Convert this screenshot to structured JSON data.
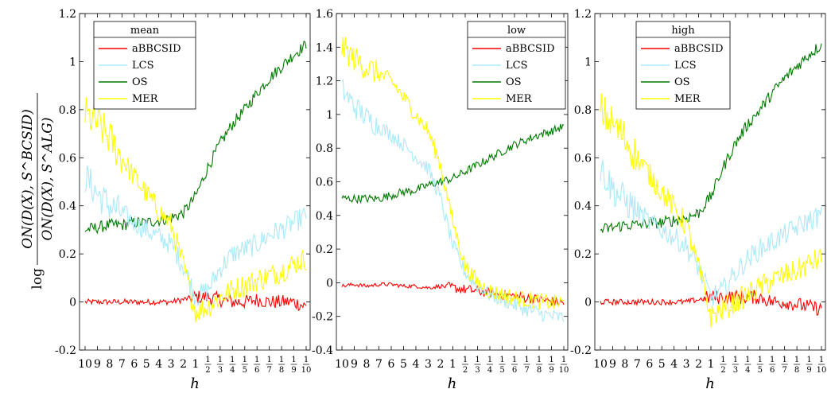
{
  "figure": {
    "ylabel": "log ON(D(X), S^BCSID) / ON(D(X), S^ALG)",
    "xlabel": "h",
    "x_tick_labels": [
      "10",
      "9",
      "8",
      "7",
      "6",
      "5",
      "4",
      "3",
      "2",
      "1",
      "1/2",
      "1/3",
      "1/4",
      "1/5",
      "1/6",
      "1/7",
      "1/8",
      "1/9",
      "1/10"
    ]
  },
  "colors": {
    "aBBCSID": "#ff0000",
    "LCS": "#aaeaf8",
    "OS": "#007a00",
    "MER": "#ffff00"
  },
  "chart_data": [
    {
      "type": "line",
      "title": "mean",
      "legend_title": "mean",
      "legend_position": "top-left",
      "ylim": [
        -0.2,
        1.2
      ],
      "yticks": [
        "-0.2",
        "0",
        "0.2",
        "0.4",
        "0.6",
        "0.8",
        "1",
        "1.2"
      ],
      "categories": [
        "10",
        "9",
        "8",
        "7",
        "6",
        "5",
        "4",
        "3",
        "2",
        "1",
        "1/2",
        "1/3",
        "1/4",
        "1/5",
        "1/6",
        "1/7",
        "1/8",
        "1/9",
        "1/10"
      ],
      "series": [
        {
          "name": "aBBCSID",
          "values": [
            0.0,
            0.0,
            0.0,
            0.0,
            0.0,
            0.0,
            0.0,
            0.0,
            0.01,
            0.02,
            0.02,
            0.01,
            0.0,
            0.0,
            0.01,
            0.0,
            0.0,
            0.0,
            -0.02
          ]
        },
        {
          "name": "LCS",
          "values": [
            0.52,
            0.45,
            0.4,
            0.37,
            0.33,
            0.3,
            0.27,
            0.24,
            0.15,
            0.02,
            0.05,
            0.14,
            0.2,
            0.22,
            0.24,
            0.28,
            0.3,
            0.33,
            0.36
          ]
        },
        {
          "name": "OS",
          "values": [
            0.3,
            0.31,
            0.32,
            0.32,
            0.33,
            0.33,
            0.34,
            0.35,
            0.37,
            0.44,
            0.56,
            0.66,
            0.74,
            0.8,
            0.87,
            0.93,
            0.98,
            1.03,
            1.07
          ]
        },
        {
          "name": "MER",
          "values": [
            0.78,
            0.74,
            0.68,
            0.6,
            0.52,
            0.45,
            0.38,
            0.32,
            0.15,
            -0.04,
            -0.02,
            0.02,
            0.05,
            0.07,
            0.09,
            0.11,
            0.13,
            0.16,
            0.18
          ]
        }
      ]
    },
    {
      "type": "line",
      "title": "low",
      "legend_title": "low",
      "legend_position": "top-right",
      "ylim": [
        -0.4,
        1.6
      ],
      "yticks": [
        "-0.4",
        "-0.2",
        "0",
        "0.2",
        "0.4",
        "0.6",
        "0.8",
        "1",
        "1.2",
        "1.4",
        "1.6"
      ],
      "categories": [
        "10",
        "9",
        "8",
        "7",
        "6",
        "5",
        "4",
        "3",
        "2",
        "1",
        "1/2",
        "1/3",
        "1/4",
        "1/5",
        "1/6",
        "1/7",
        "1/8",
        "1/9",
        "1/10"
      ],
      "series": [
        {
          "name": "aBBCSID",
          "values": [
            -0.02,
            -0.01,
            -0.02,
            -0.01,
            -0.01,
            -0.02,
            -0.02,
            -0.03,
            -0.02,
            -0.03,
            -0.04,
            -0.05,
            -0.06,
            -0.07,
            -0.08,
            -0.09,
            -0.1,
            -0.11,
            -0.12
          ]
        },
        {
          "name": "LCS",
          "values": [
            1.15,
            1.05,
            0.98,
            0.93,
            0.88,
            0.82,
            0.75,
            0.68,
            0.5,
            0.22,
            0.06,
            -0.02,
            -0.07,
            -0.1,
            -0.13,
            -0.16,
            -0.18,
            -0.2,
            -0.21
          ]
        },
        {
          "name": "OS",
          "values": [
            0.5,
            0.5,
            0.5,
            0.5,
            0.52,
            0.54,
            0.55,
            0.58,
            0.6,
            0.62,
            0.66,
            0.7,
            0.74,
            0.78,
            0.82,
            0.85,
            0.88,
            0.9,
            0.93
          ]
        },
        {
          "name": "MER",
          "values": [
            1.4,
            1.33,
            1.28,
            1.24,
            1.2,
            1.1,
            1.0,
            0.9,
            0.7,
            0.36,
            0.1,
            0.0,
            -0.05,
            -0.07,
            -0.09,
            -0.1,
            -0.11,
            -0.12,
            -0.12
          ]
        }
      ]
    },
    {
      "type": "line",
      "title": "high",
      "legend_title": "high",
      "legend_position": "top-center",
      "ylim": [
        -0.2,
        1.2
      ],
      "yticks": [
        "-0.2",
        "0",
        "0.2",
        "0.4",
        "0.6",
        "0.8",
        "1",
        "1.2"
      ],
      "categories": [
        "10",
        "9",
        "8",
        "7",
        "6",
        "5",
        "4",
        "3",
        "2",
        "1",
        "1/2",
        "1/3",
        "1/4",
        "1/5",
        "1/6",
        "1/7",
        "1/8",
        "1/9",
        "1/10"
      ],
      "series": [
        {
          "name": "aBBCSID",
          "values": [
            0.0,
            0.0,
            0.0,
            0.0,
            0.0,
            0.0,
            0.0,
            0.0,
            0.01,
            0.02,
            0.02,
            0.02,
            0.02,
            0.02,
            0.0,
            0.0,
            -0.01,
            -0.02,
            -0.03
          ]
        },
        {
          "name": "LCS",
          "values": [
            0.56,
            0.47,
            0.42,
            0.38,
            0.33,
            0.3,
            0.27,
            0.23,
            0.14,
            0.02,
            0.05,
            0.12,
            0.18,
            0.22,
            0.25,
            0.28,
            0.31,
            0.34,
            0.36
          ]
        },
        {
          "name": "OS",
          "values": [
            0.3,
            0.31,
            0.32,
            0.32,
            0.33,
            0.33,
            0.34,
            0.35,
            0.37,
            0.44,
            0.56,
            0.66,
            0.74,
            0.8,
            0.87,
            0.93,
            0.98,
            1.03,
            1.07
          ]
        },
        {
          "name": "MER",
          "values": [
            0.8,
            0.74,
            0.68,
            0.6,
            0.53,
            0.46,
            0.39,
            0.32,
            0.14,
            -0.06,
            -0.03,
            0.0,
            0.03,
            0.06,
            0.09,
            0.11,
            0.13,
            0.16,
            0.18
          ]
        }
      ]
    }
  ]
}
